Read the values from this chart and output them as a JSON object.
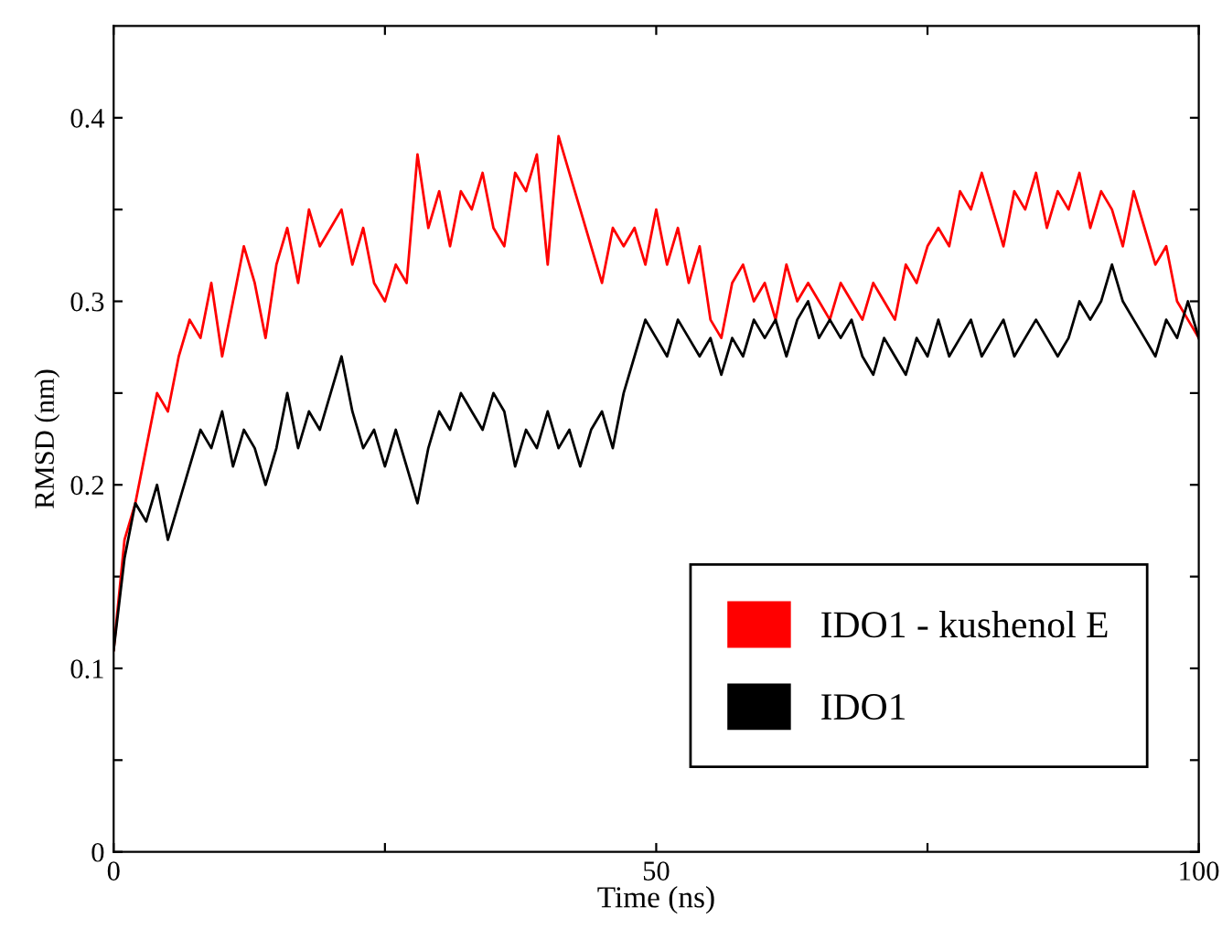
{
  "chart_data": {
    "type": "line",
    "xlabel": "Time (ns)",
    "ylabel": "RMSD (nm)",
    "x": [
      0,
      1,
      2,
      3,
      4,
      5,
      6,
      7,
      8,
      9,
      10,
      11,
      12,
      13,
      14,
      15,
      16,
      17,
      18,
      19,
      20,
      21,
      22,
      23,
      24,
      25,
      26,
      27,
      28,
      29,
      30,
      31,
      32,
      33,
      34,
      35,
      36,
      37,
      38,
      39,
      40,
      41,
      42,
      43,
      44,
      45,
      46,
      47,
      48,
      49,
      50,
      51,
      52,
      53,
      54,
      55,
      56,
      57,
      58,
      59,
      60,
      61,
      62,
      63,
      64,
      65,
      66,
      67,
      68,
      69,
      70,
      71,
      72,
      73,
      74,
      75,
      76,
      77,
      78,
      79,
      80,
      81,
      82,
      83,
      84,
      85,
      86,
      87,
      88,
      89,
      90,
      91,
      92,
      93,
      94,
      95,
      96,
      97,
      98,
      99,
      100
    ],
    "series": [
      {
        "name": "IDO1 - kushenol E",
        "color": "#ff0000",
        "values": [
          0.11,
          0.17,
          0.19,
          0.22,
          0.25,
          0.24,
          0.27,
          0.29,
          0.28,
          0.31,
          0.27,
          0.3,
          0.33,
          0.31,
          0.28,
          0.32,
          0.34,
          0.31,
          0.35,
          0.33,
          0.34,
          0.35,
          0.32,
          0.34,
          0.31,
          0.3,
          0.32,
          0.31,
          0.38,
          0.34,
          0.36,
          0.33,
          0.36,
          0.35,
          0.37,
          0.34,
          0.33,
          0.37,
          0.36,
          0.38,
          0.32,
          0.39,
          0.37,
          0.35,
          0.33,
          0.31,
          0.34,
          0.33,
          0.34,
          0.32,
          0.35,
          0.32,
          0.34,
          0.31,
          0.33,
          0.29,
          0.28,
          0.31,
          0.32,
          0.3,
          0.31,
          0.29,
          0.32,
          0.3,
          0.31,
          0.3,
          0.29,
          0.31,
          0.3,
          0.29,
          0.31,
          0.3,
          0.29,
          0.32,
          0.31,
          0.33,
          0.34,
          0.33,
          0.36,
          0.35,
          0.37,
          0.35,
          0.33,
          0.36,
          0.35,
          0.37,
          0.34,
          0.36,
          0.35,
          0.37,
          0.34,
          0.36,
          0.35,
          0.33,
          0.36,
          0.34,
          0.32,
          0.33,
          0.3,
          0.29,
          0.28
        ]
      },
      {
        "name": "IDO1",
        "color": "#000000",
        "values": [
          0.11,
          0.16,
          0.19,
          0.18,
          0.2,
          0.17,
          0.19,
          0.21,
          0.23,
          0.22,
          0.24,
          0.21,
          0.23,
          0.22,
          0.2,
          0.22,
          0.25,
          0.22,
          0.24,
          0.23,
          0.25,
          0.27,
          0.24,
          0.22,
          0.23,
          0.21,
          0.23,
          0.21,
          0.19,
          0.22,
          0.24,
          0.23,
          0.25,
          0.24,
          0.23,
          0.25,
          0.24,
          0.21,
          0.23,
          0.22,
          0.24,
          0.22,
          0.23,
          0.21,
          0.23,
          0.24,
          0.22,
          0.25,
          0.27,
          0.29,
          0.28,
          0.27,
          0.29,
          0.28,
          0.27,
          0.28,
          0.26,
          0.28,
          0.27,
          0.29,
          0.28,
          0.29,
          0.27,
          0.29,
          0.3,
          0.28,
          0.29,
          0.28,
          0.29,
          0.27,
          0.26,
          0.28,
          0.27,
          0.26,
          0.28,
          0.27,
          0.29,
          0.27,
          0.28,
          0.29,
          0.27,
          0.28,
          0.29,
          0.27,
          0.28,
          0.29,
          0.28,
          0.27,
          0.28,
          0.3,
          0.29,
          0.3,
          0.32,
          0.3,
          0.29,
          0.28,
          0.27,
          0.29,
          0.28,
          0.3,
          0.28
        ]
      }
    ],
    "xlim": [
      0,
      100
    ],
    "xticks": [
      0,
      {
        "value": 25,
        "label": null
      },
      50,
      {
        "value": 75,
        "label": null
      },
      100
    ],
    "ylim": [
      0,
      0.45
    ],
    "yticks": [
      0,
      {
        "value": 0.05,
        "label": null
      },
      0.1,
      {
        "value": 0.15,
        "label": null
      },
      0.2,
      {
        "value": 0.25,
        "label": null
      },
      0.3,
      {
        "value": 0.35,
        "label": null
      },
      0.4
    ],
    "legend": "bottom right",
    "grid": false
  }
}
